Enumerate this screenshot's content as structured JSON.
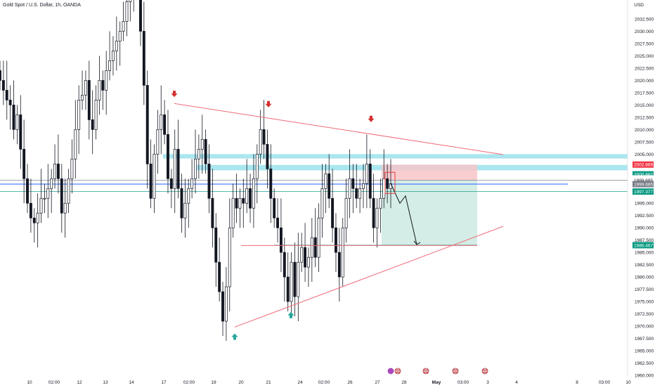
{
  "header": {
    "symbol_title": "Gold Spot / U.S. Dollar, 1h, OANDA"
  },
  "price_axis": {
    "currency": "USD",
    "tick_labels": [
      "2032.500",
      "2030.000",
      "2027.500",
      "2025.000",
      "2022.500",
      "2020.000",
      "2017.500",
      "2015.000",
      "2012.500",
      "2010.000",
      "2007.500",
      "2005.000",
      "1995.000",
      "1992.500",
      "1990.000",
      "1987.500",
      "1985.000",
      "1982.500",
      "1980.000",
      "1977.500",
      "1975.000",
      "1972.500",
      "1970.000",
      "1967.500",
      "1965.000",
      "1962.500",
      "1960.000"
    ],
    "badges": [
      {
        "text": "2002.869",
        "price": 2002.869,
        "bg": "#f23645",
        "fg": "#ffffff"
      },
      {
        "text": "2000.882",
        "price": 2000.882,
        "bg": "#089981",
        "fg": "#ffffff"
      },
      {
        "text": "24:38",
        "price": 2000.05,
        "bg": "#ffffff",
        "fg": "#131722"
      },
      {
        "text": "1999.685",
        "price": 1999.685,
        "bg": "#ffffff",
        "fg": "#131722"
      },
      {
        "text": "1999.685",
        "price": 1998.9,
        "bg": "#787b86",
        "fg": "#ffffff"
      },
      {
        "text": "1997.377",
        "price": 1997.377,
        "bg": "#089981",
        "fg": "#ffffff"
      },
      {
        "text": "1986.467",
        "price": 1986.467,
        "bg": "#089981",
        "fg": "#ffffff"
      }
    ]
  },
  "time_axis": {
    "labels": [
      "10",
      "02:00",
      "12",
      "13",
      "14",
      "17",
      "02:00",
      "19",
      "20",
      "21",
      "24",
      "02:00",
      "26",
      "27",
      "28",
      "May",
      "03:00",
      "3",
      "4",
      "8",
      "03:00",
      "10"
    ]
  },
  "chart_data": {
    "type": "candlestick",
    "title": "Gold Spot / U.S. Dollar, 1h, OANDA",
    "xlabel": "",
    "ylabel": "USD",
    "ylim": [
      1960,
      2035
    ],
    "grid": false,
    "current_price": 1999.685,
    "price_levels": [
      {
        "price": 2002.869,
        "color": "#f23645"
      },
      {
        "price": 2000.882,
        "color": "#089981"
      },
      {
        "price": 1999.685,
        "color": "#787b86"
      },
      {
        "price": 1998.9,
        "color": "#2962ff"
      },
      {
        "price": 1997.377,
        "color": "#089981"
      },
      {
        "price": 1986.467,
        "color": "#089981"
      }
    ],
    "resistance_zones": [
      {
        "from": 2004.1,
        "to": 2005.0,
        "color": "#a5e5ee"
      },
      {
        "from": 2001.7,
        "to": 2002.8,
        "color": "#a5e5ee"
      }
    ],
    "trendlines": [
      {
        "name": "descending-resistance",
        "start": {
          "date": "Apr 17",
          "price": 2015.3
        },
        "end": {
          "date": "May 3",
          "price": 2004.9
        },
        "color": "#f06a78"
      },
      {
        "name": "ascending-support",
        "start": {
          "date": "Apr 19",
          "price": 1969.8
        },
        "end": {
          "date": "May 3",
          "price": 1990.3
        },
        "color": "#f06a78"
      },
      {
        "name": "horizontal-support",
        "start": {
          "date": "Apr 20",
          "price": 1986.4
        },
        "end": {
          "date": "May 1",
          "price": 1986.4
        },
        "color": "#f06a78"
      }
    ],
    "markers": [
      {
        "kind": "down",
        "date": "Apr 17",
        "price": 2016.9,
        "color": "#d32f2f"
      },
      {
        "kind": "down",
        "date": "Apr 21",
        "price": 2014.8,
        "color": "#d32f2f"
      },
      {
        "kind": "down",
        "date": "Apr 26",
        "price": 2011.8,
        "color": "#d32f2f"
      },
      {
        "kind": "up",
        "date": "Apr 19",
        "price": 1968.2,
        "color": "#26a69a"
      },
      {
        "kind": "up",
        "date": "Apr 23",
        "price": 1972.6,
        "color": "#26a69a"
      }
    ],
    "short_position": {
      "entry": 1999.685,
      "stop": 2002.869,
      "target": 1986.467,
      "loss_color": "#f7c5c9",
      "profit_color": "#cfebe3"
    },
    "projection": [
      1999.0,
      1995.0,
      1996.5,
      1986.6
    ],
    "closes": [
      2020,
      2018,
      2016,
      2015,
      2010,
      2013,
      2006,
      2000,
      1995,
      1992,
      1991,
      1993,
      1996,
      1996,
      1998,
      2000,
      2003,
      2000,
      1993,
      1995,
      2000,
      2004,
      2010,
      2016,
      2017,
      2020,
      2012,
      2010,
      2016,
      2020,
      2018,
      2022,
      2024,
      2026,
      2028,
      2030,
      2032,
      2036,
      2040,
      2039,
      2042,
      2030,
      2019,
      2003,
      1996,
      2005,
      2010,
      2013,
      2009,
      2000,
      1998,
      2006,
      1998,
      1992,
      1995,
      1998,
      2000,
      2004,
      2006,
      2008,
      2003,
      1996,
      1990,
      1983,
      1977,
      1971,
      1978,
      1990,
      1996,
      1994,
      1996,
      1995,
      1998,
      1994,
      2000,
      2005,
      2010,
      2007,
      2002,
      1996,
      1992,
      1990,
      1985,
      1980,
      1975,
      1983,
      1976,
      1983,
      1986,
      1982,
      1984,
      1988,
      1984,
      1992,
      1998,
      2001,
      1996,
      1990,
      1985,
      1980,
      1990,
      1996,
      2000,
      1998,
      1996,
      1998,
      1999,
      2003,
      1996,
      1990,
      1994,
      1996,
      2000,
      1998,
      1999
    ]
  }
}
